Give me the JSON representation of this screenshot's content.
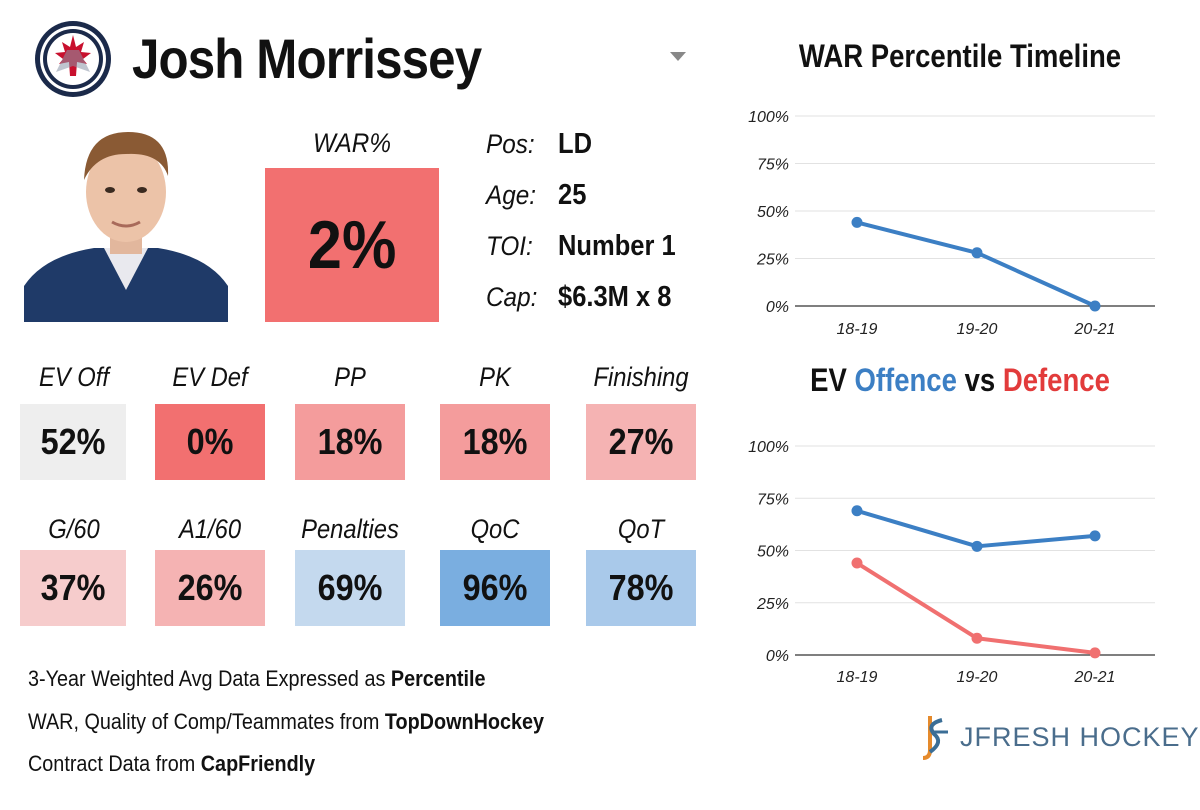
{
  "header": {
    "player_name": "Josh Morrissey",
    "logo_icon": "winnipeg-jets-logo",
    "dropdown_icon": "caret-down-icon"
  },
  "war": {
    "label": "WAR%",
    "value": "2%",
    "color": "#f27070"
  },
  "info": [
    {
      "label": "Pos:",
      "value": "LD"
    },
    {
      "label": "Age:",
      "value": "25"
    },
    {
      "label": "TOI:",
      "value": "Number 1"
    },
    {
      "label": "Cap:",
      "value": "$6.3M x 8"
    }
  ],
  "stats_row1": [
    {
      "label": "EV Off",
      "value": "52%",
      "color": "#eeeeee"
    },
    {
      "label": "EV Def",
      "value": "0%",
      "color": "#f27070"
    },
    {
      "label": "PP",
      "value": "18%",
      "color": "#f49c9c"
    },
    {
      "label": "PK",
      "value": "18%",
      "color": "#f49c9c"
    },
    {
      "label": "Finishing",
      "value": "27%",
      "color": "#f5b3b3"
    }
  ],
  "stats_row2": [
    {
      "label": "G/60",
      "value": "37%",
      "color": "#f6cccc"
    },
    {
      "label": "A1/60",
      "value": "26%",
      "color": "#f5b3b3"
    },
    {
      "label": "Penalties",
      "value": "69%",
      "color": "#c4d9ee"
    },
    {
      "label": "QoC",
      "value": "96%",
      "color": "#7aaee0"
    },
    {
      "label": "QoT",
      "value": "78%",
      "color": "#a9c9ea"
    }
  ],
  "footer": [
    {
      "text": "3-Year Weighted Avg Data Expressed as ",
      "bold": "Percentile"
    },
    {
      "text": "WAR, Quality of Comp/Teammates from ",
      "bold": "TopDownHockey"
    },
    {
      "text": "Contract Data from ",
      "bold": "CapFriendly"
    }
  ],
  "brand": {
    "name": "JFRESH HOCKEY",
    "icon": "jfresh-logo-icon"
  },
  "chart_data": [
    {
      "type": "line",
      "title": "WAR Percentile Timeline",
      "categories": [
        "18-19",
        "19-20",
        "20-21"
      ],
      "yticks": [
        "0%",
        "25%",
        "50%",
        "75%",
        "100%"
      ],
      "ylim": [
        0,
        100
      ],
      "grid": true,
      "series": [
        {
          "values": [
            44,
            28,
            0
          ],
          "color": "#3c7fc4"
        }
      ]
    },
    {
      "type": "line",
      "title_parts": [
        {
          "text": "EV ",
          "color": "#111111"
        },
        {
          "text": "Offence",
          "color": "#3c7fc4"
        },
        {
          "text": " vs ",
          "color": "#111111"
        },
        {
          "text": "Defence",
          "color": "#e23b3b"
        }
      ],
      "categories": [
        "18-19",
        "19-20",
        "20-21"
      ],
      "yticks": [
        "0%",
        "25%",
        "50%",
        "75%",
        "100%"
      ],
      "ylim": [
        0,
        100
      ],
      "grid": true,
      "series": [
        {
          "values": [
            69,
            52,
            57
          ],
          "color": "#3c7fc4"
        },
        {
          "values": [
            44,
            8,
            1
          ],
          "color": "#f07070"
        }
      ]
    }
  ]
}
